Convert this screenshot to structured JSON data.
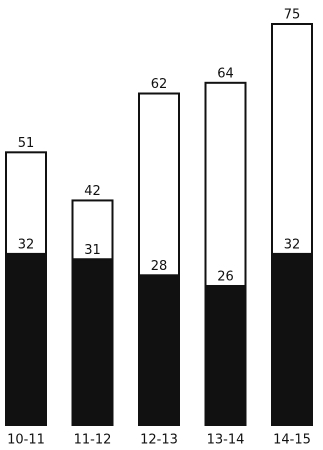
{
  "chart_data": {
    "type": "overlay-bar",
    "categories": [
      "10-11",
      "11-12",
      "12-13",
      "13-14",
      "14-15"
    ],
    "series": [
      {
        "color": "#ffffff",
        "values": [
          51,
          42,
          62,
          64,
          75
        ]
      },
      {
        "color": "#111111",
        "values": [
          32,
          31,
          28,
          26,
          32
        ]
      }
    ]
  }
}
